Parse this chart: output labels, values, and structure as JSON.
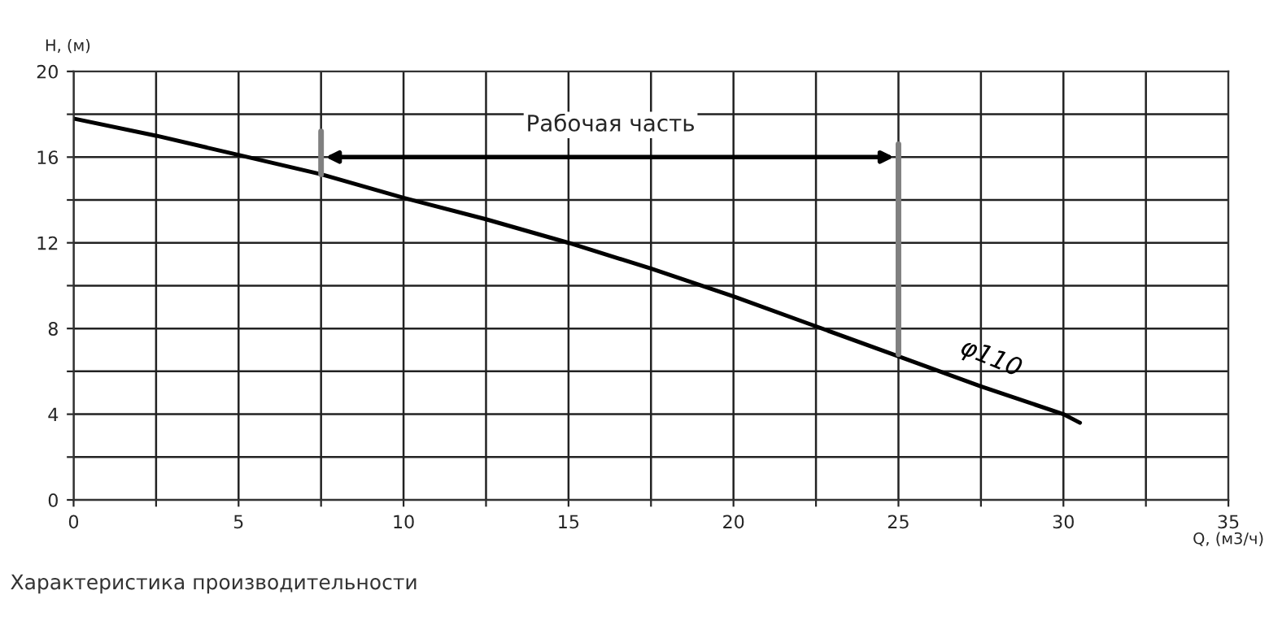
{
  "chart_data": {
    "type": "line",
    "xlabel": "Q, (м3/ч)",
    "ylabel": "H, (м)",
    "x": [
      0,
      2.5,
      5,
      7.5,
      10,
      12.5,
      15,
      17.5,
      20,
      22.5,
      25,
      27.5,
      30,
      30.5
    ],
    "series": [
      {
        "name": "φ110",
        "color": "#000000",
        "values": [
          17.8,
          17.0,
          16.1,
          15.2,
          14.1,
          13.1,
          12.0,
          10.8,
          9.5,
          8.1,
          6.7,
          5.3,
          4.0,
          3.6
        ]
      }
    ],
    "xlim": [
      0,
      35
    ],
    "ylim": [
      0,
      20
    ],
    "xticks": [
      0,
      {
        "value": 2.5,
        "label": null
      },
      5,
      {
        "value": 7.5,
        "label": null
      },
      10,
      {
        "value": 12.5,
        "label": null
      },
      15,
      {
        "value": 17.5,
        "label": null
      },
      20,
      {
        "value": 22.5,
        "label": null
      },
      25,
      {
        "value": 27.5,
        "label": null
      },
      30,
      {
        "value": 32.5,
        "label": null
      },
      35
    ],
    "yticks": [
      0,
      {
        "value": 2,
        "label": null
      },
      4,
      {
        "value": 6,
        "label": null
      },
      8,
      {
        "value": 10,
        "label": null
      },
      12,
      {
        "value": 14,
        "label": null
      },
      16,
      {
        "value": 18,
        "label": null
      },
      20
    ],
    "ref_lines": [
      {
        "axis": "x",
        "value": 7.5,
        "color": "#808080"
      },
      {
        "axis": "x",
        "value": 25,
        "color": "#808080"
      }
    ],
    "annotations": [
      "Рабочая часть",
      "Характеристика производительности"
    ],
    "grid": true,
    "marker": "none",
    "line_style": "solid",
    "legend": false
  }
}
